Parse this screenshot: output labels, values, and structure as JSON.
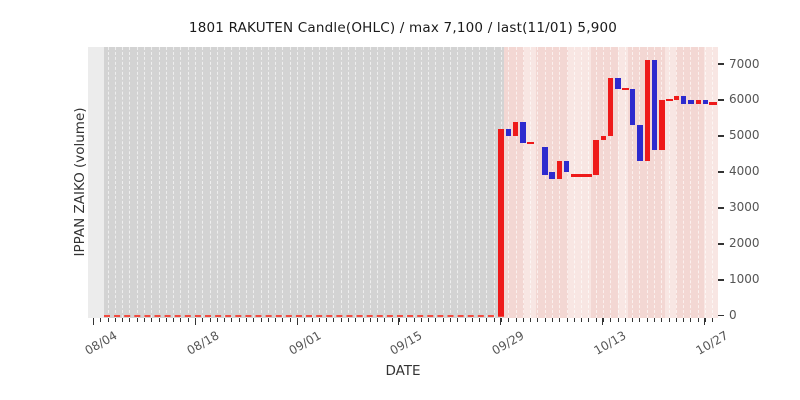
{
  "title": "1801 RAKUTEN Candle(OHLC) / max 7,100 / last(11/01) 5,900",
  "axes": {
    "x_title": "DATE",
    "y_title": "IPPAN ZAIKO (volume)",
    "x_tick_labels": [
      "08/04",
      "08/18",
      "09/01",
      "09/15",
      "09/29",
      "10/13",
      "10/27"
    ],
    "y_tick_labels": [
      "0",
      "1000",
      "2000",
      "3000",
      "4000",
      "5000",
      "6000",
      "7000"
    ]
  },
  "colors": {
    "up_candle": "#ee1a1a",
    "down_candle": "#2d2ace",
    "flat_mark": "#ee1a1a",
    "zero_dashed_line": "#f24b40",
    "zero_period_bg": "#d3d3d3",
    "active_period_bg": "#f3d7d3",
    "active_period_light_bg": "#f8e6e3",
    "axes_margin_bg": "#ececec",
    "tick_text": "#555555",
    "title_text": "#1a1a1a"
  },
  "chart_data": {
    "type": "candlestick-ohlc",
    "title": "1801 RAKUTEN Candle(OHLC) / max 7,100 / last(11/01) 5,900",
    "xlabel": "DATE",
    "ylabel": "IPPAN ZAIKO (volume)",
    "ylim": [
      0,
      7450
    ],
    "y_ticks": [
      0,
      1000,
      2000,
      3000,
      4000,
      5000,
      6000,
      7000
    ],
    "x_ticks": [
      "08/04",
      "08/18",
      "09/01",
      "09/15",
      "09/29",
      "10/13",
      "10/27"
    ],
    "grid": "vertical-daily-dashed",
    "legend": "none",
    "max_value": 7100,
    "last_value": 5900,
    "last_date": "11/01",
    "zero_period": {
      "note": "value flat at 0 (gray band, red dashed line)",
      "from": "08/06",
      "to": "09/29"
    },
    "series": [
      {
        "day": 0,
        "date": "09/29",
        "open": 0,
        "close": 5200,
        "dir": "up"
      },
      {
        "day": 1,
        "date": "09/30",
        "open": 5200,
        "close": 5000,
        "dir": "down"
      },
      {
        "day": 2,
        "date": "10/01",
        "open": 5000,
        "close": 5400,
        "dir": "up"
      },
      {
        "day": 3,
        "date": "10/02",
        "open": 5400,
        "close": 4800,
        "dir": "down"
      },
      {
        "day": 4,
        "date": "10/03",
        "open": 4800,
        "close": 4800,
        "dir": "flat"
      },
      {
        "day": 6,
        "date": "10/05",
        "open": 4700,
        "close": 3900,
        "dir": "down"
      },
      {
        "day": 7,
        "date": "10/06",
        "open": 4000,
        "close": 3800,
        "dir": "down"
      },
      {
        "day": 8,
        "date": "10/07",
        "open": 3800,
        "close": 4300,
        "dir": "up"
      },
      {
        "day": 9,
        "date": "10/08",
        "open": 4300,
        "close": 4000,
        "dir": "down"
      },
      {
        "day": 10,
        "date": "10/09",
        "open": 3900,
        "close": 3900,
        "dir": "flat"
      },
      {
        "day": 11,
        "date": "10/10",
        "open": 3900,
        "close": 3900,
        "dir": "flat"
      },
      {
        "day": 12,
        "date": "10/11",
        "open": 3900,
        "close": 3900,
        "dir": "flat"
      },
      {
        "day": 13,
        "date": "10/12",
        "open": 3900,
        "close": 4900,
        "dir": "up"
      },
      {
        "day": 14,
        "date": "10/13",
        "open": 4900,
        "close": 5000,
        "dir": "up"
      },
      {
        "day": 15,
        "date": "10/14",
        "open": 5000,
        "close": 6600,
        "dir": "up"
      },
      {
        "day": 16,
        "date": "10/15",
        "open": 6600,
        "close": 6300,
        "dir": "down"
      },
      {
        "day": 17,
        "date": "10/16",
        "open": 6300,
        "close": 6300,
        "dir": "flat"
      },
      {
        "day": 18,
        "date": "10/17",
        "open": 6300,
        "close": 5300,
        "dir": "down"
      },
      {
        "day": 19,
        "date": "10/18",
        "open": 5300,
        "close": 4300,
        "dir": "down"
      },
      {
        "day": 20,
        "date": "10/19",
        "open": 4300,
        "close": 7100,
        "dir": "up"
      },
      {
        "day": 21,
        "date": "10/20",
        "open": 7100,
        "close": 4600,
        "dir": "down"
      },
      {
        "day": 22,
        "date": "10/21",
        "open": 4600,
        "close": 6000,
        "dir": "up"
      },
      {
        "day": 23,
        "date": "10/22",
        "open": 6000,
        "close": 6000,
        "dir": "flat"
      },
      {
        "day": 24,
        "date": "10/23",
        "open": 6000,
        "close": 6100,
        "dir": "up"
      },
      {
        "day": 25,
        "date": "10/24",
        "open": 6100,
        "close": 5900,
        "dir": "down"
      },
      {
        "day": 26,
        "date": "10/25",
        "open": 6000,
        "close": 5900,
        "dir": "down"
      },
      {
        "day": 27,
        "date": "10/26",
        "open": 5900,
        "close": 6000,
        "dir": "up"
      },
      {
        "day": 28,
        "date": "10/27",
        "open": 6000,
        "close": 5900,
        "dir": "down"
      },
      {
        "day": 29,
        "date": "11/01",
        "open": 5900,
        "close": 5900,
        "dir": "flat"
      }
    ]
  }
}
